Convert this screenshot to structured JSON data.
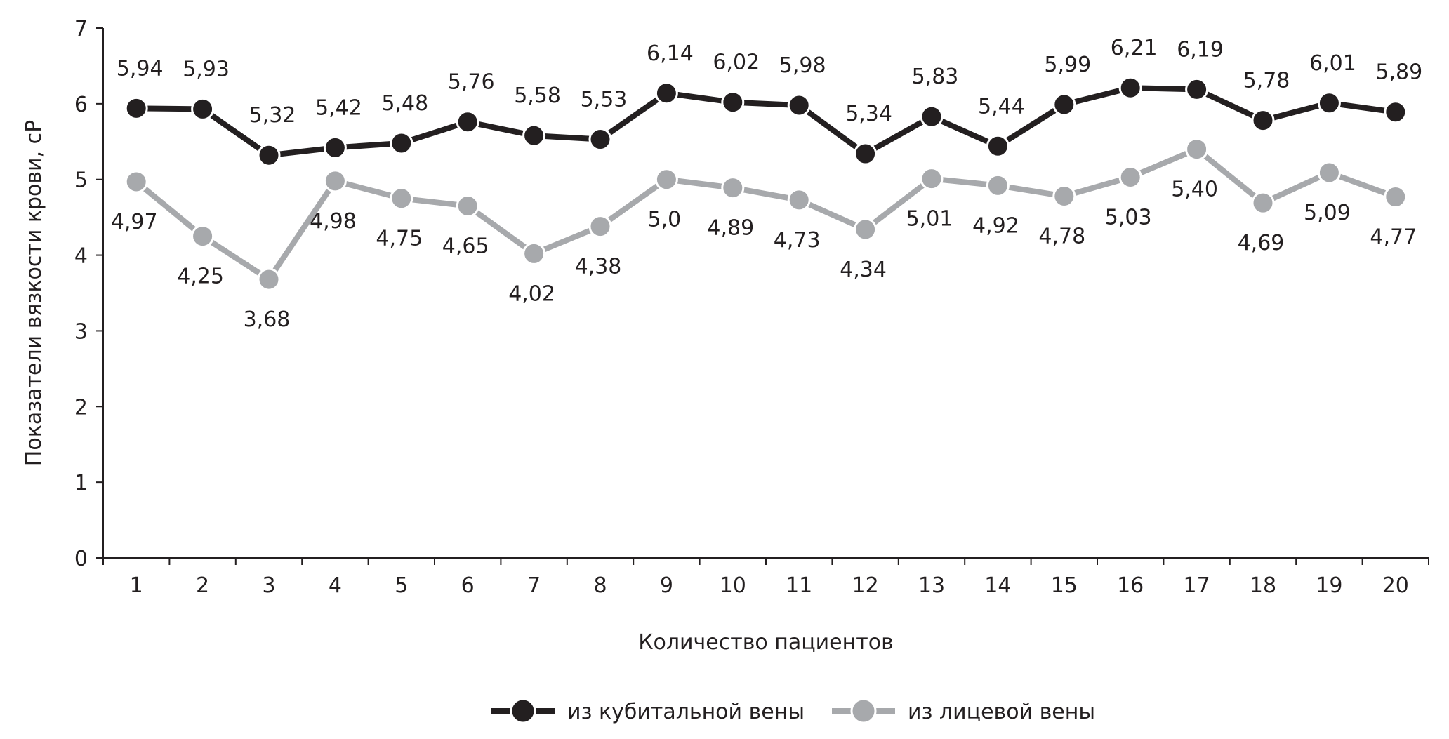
{
  "chart_data": {
    "type": "line",
    "title": "",
    "xlabel": "Количество пациентов",
    "ylabel": "Показатели вязкости крови, cP",
    "ylim": [
      0,
      7
    ],
    "yticks": [
      "0",
      "1",
      "2",
      "3",
      "4",
      "5",
      "6",
      "7"
    ],
    "categories": [
      "1",
      "2",
      "3",
      "4",
      "5",
      "6",
      "7",
      "8",
      "9",
      "10",
      "11",
      "12",
      "13",
      "14",
      "15",
      "16",
      "17",
      "18",
      "19",
      "20"
    ],
    "grid": false,
    "legend_position": "bottom",
    "series": [
      {
        "name": "из кубитальной вены",
        "color": "#231f20",
        "values": [
          5.94,
          5.93,
          5.32,
          5.42,
          5.48,
          5.76,
          5.58,
          5.53,
          6.14,
          6.02,
          5.98,
          5.34,
          5.83,
          5.44,
          5.99,
          6.21,
          6.19,
          5.78,
          6.01,
          5.89
        ],
        "labels": [
          "5,94",
          "5,93",
          "5,32",
          "5,42",
          "5,48",
          "5,76",
          "5,58",
          "5,53",
          "6,14",
          "6,02",
          "5,98",
          "5,34",
          "5,83",
          "5,44",
          "5,99",
          "6,21",
          "6,19",
          "5,78",
          "6,01",
          "5,89"
        ]
      },
      {
        "name": "из лицевой вены",
        "color": "#a7a9ac",
        "values": [
          4.97,
          4.25,
          3.68,
          4.98,
          4.75,
          4.65,
          4.02,
          4.38,
          5.0,
          4.89,
          4.73,
          4.34,
          5.01,
          4.92,
          4.78,
          5.03,
          5.4,
          4.69,
          5.09,
          4.77
        ],
        "labels": [
          "4,97",
          "4,25",
          "3,68",
          "4,98",
          "4,75",
          "4,65",
          "4,02",
          "4,38",
          "5,0",
          "4,89",
          "4,73",
          "4,34",
          "5,01",
          "4,92",
          "4,78",
          "5,03",
          "5,40",
          "4,69",
          "5,09",
          "4,77"
        ]
      }
    ]
  }
}
